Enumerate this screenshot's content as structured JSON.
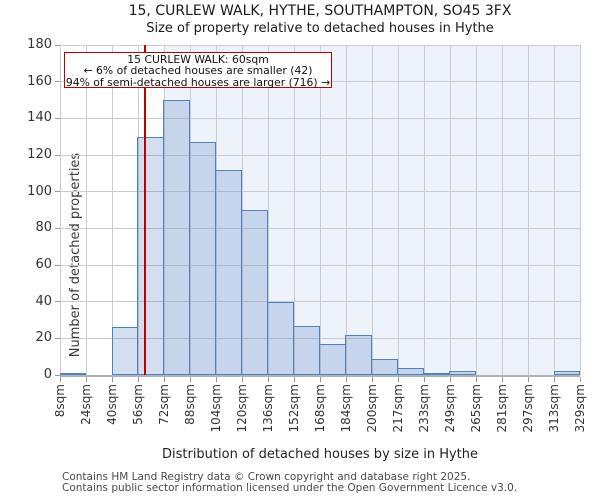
{
  "footer": {
    "line1": "Contains HM Land Registry data © Crown copyright and database right 2025.",
    "line2": "Contains public sector information licensed under the Open Government Licence v3.0."
  },
  "chart_data": {
    "type": "bar",
    "title": "15, CURLEW WALK, HYTHE, SOUTHAMPTON, SO45 3FX",
    "subtitle": "Size of property relative to detached houses in Hythe",
    "xlabel": "Distribution of detached houses by size in Hythe",
    "ylabel": "Number of detached properties",
    "bin_edges_sqm": [
      8,
      24,
      40,
      56,
      72,
      88,
      104,
      120,
      136,
      152,
      168,
      184,
      200,
      217,
      233,
      249,
      265,
      281,
      297,
      313,
      329
    ],
    "x_tick_labels": [
      "8sqm",
      "24sqm",
      "40sqm",
      "56sqm",
      "72sqm",
      "88sqm",
      "104sqm",
      "120sqm",
      "136sqm",
      "152sqm",
      "168sqm",
      "184sqm",
      "200sqm",
      "217sqm",
      "233sqm",
      "249sqm",
      "265sqm",
      "281sqm",
      "297sqm",
      "313sqm",
      "329sqm"
    ],
    "values": [
      1,
      0,
      26,
      130,
      150,
      127,
      112,
      90,
      40,
      27,
      17,
      22,
      9,
      4,
      1,
      2,
      0,
      0,
      0,
      2
    ],
    "ylim": [
      0,
      180
    ],
    "y_ticks": [
      0,
      20,
      40,
      60,
      80,
      100,
      120,
      140,
      160,
      180
    ],
    "grid": true,
    "marker_value_sqm": 60,
    "marker_color": "#c00000",
    "bar_border_color": "#4f82c3",
    "bar_fill_color": "#d3dff4",
    "gridline_color": "#cccccc",
    "highlight_region": {
      "from_sqm": 72,
      "to_sqm": 329,
      "color": "#eef2fb"
    },
    "annotation_box": {
      "lines": [
        "15 CURLEW WALK: 60sqm",
        "← 6% of detached houses are smaller (42)",
        "94% of semi-detached houses are larger (716) →"
      ]
    }
  }
}
